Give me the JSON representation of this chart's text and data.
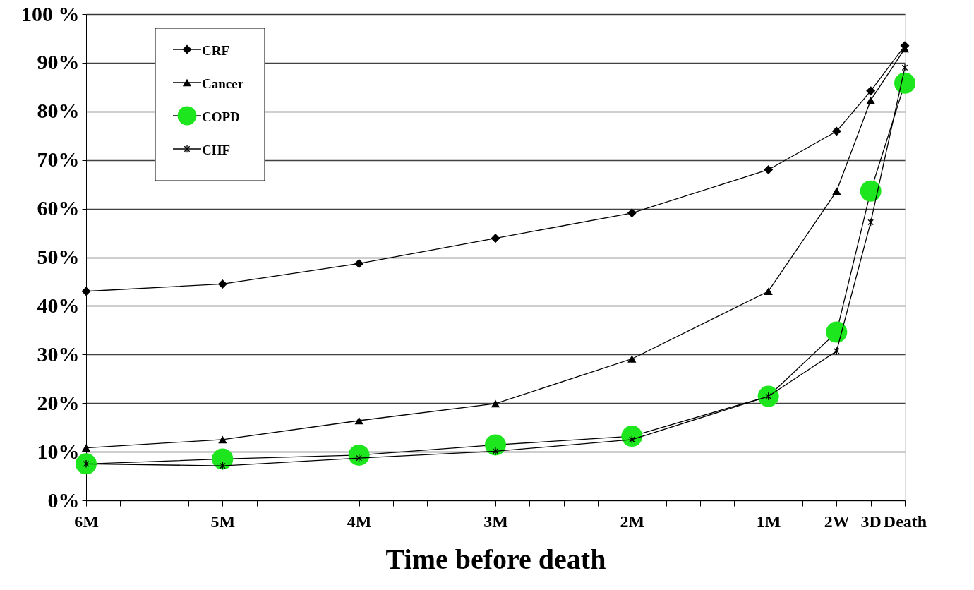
{
  "chart_data": {
    "type": "line",
    "xlabel": "Time before death",
    "categories": [
      "6M",
      null,
      null,
      null,
      "5M",
      null,
      null,
      null,
      "4M",
      null,
      null,
      null,
      "3M",
      null,
      null,
      null,
      "2M",
      null,
      null,
      null,
      "1M",
      null,
      "2W",
      "3D",
      "Death"
    ],
    "ylim": [
      0,
      100
    ],
    "yticks": [
      {
        "value": 0,
        "label": "0%"
      },
      {
        "value": 10,
        "label": "10%"
      },
      {
        "value": 20,
        "label": "20%"
      },
      {
        "value": 30,
        "label": "30%"
      },
      {
        "value": 40,
        "label": "40%"
      },
      {
        "value": 50,
        "label": "50%"
      },
      {
        "value": 60,
        "label": "60%"
      },
      {
        "value": 70,
        "label": "70%"
      },
      {
        "value": 80,
        "label": "80%"
      },
      {
        "value": 90,
        "label": "90%"
      },
      {
        "value": 100,
        "label": "100 %"
      }
    ],
    "grid": "y",
    "legend": "top left",
    "line_style": "solid",
    "series": [
      {
        "name": "CRF",
        "color": "#000000",
        "marker": "diamond",
        "values": [
          43,
          null,
          null,
          null,
          44.5,
          null,
          null,
          null,
          48.7,
          null,
          null,
          null,
          53.9,
          null,
          null,
          null,
          59.1,
          null,
          null,
          null,
          68,
          null,
          75.9,
          84.2,
          93.5
        ]
      },
      {
        "name": "Cancer",
        "color": "#000000",
        "marker": "triangle",
        "values": [
          10.8,
          null,
          null,
          null,
          12.5,
          null,
          null,
          null,
          16.4,
          null,
          null,
          null,
          19.9,
          null,
          null,
          null,
          29.1,
          null,
          null,
          null,
          43,
          null,
          63.6,
          82.3,
          92.9
        ]
      },
      {
        "name": "COPD",
        "color": "#000000",
        "colors": [
          "#1ee61e",
          null,
          null,
          null,
          "#1ee61e",
          null,
          null,
          null,
          "#1ee61e",
          null,
          null,
          null,
          "#1ee61e",
          null,
          null,
          null,
          "#1ee61e",
          null,
          null,
          null,
          "#1ee61e",
          null,
          "#1ee61e",
          "#1ee61e",
          "#1ee61e"
        ],
        "marker": "circle",
        "values": [
          7.5,
          null,
          null,
          null,
          8.5,
          null,
          null,
          null,
          9.3,
          null,
          null,
          null,
          11.4,
          null,
          null,
          null,
          13.2,
          null,
          null,
          null,
          21.4,
          null,
          34.6,
          63.6,
          85.8
        ]
      },
      {
        "name": "CHF",
        "color": "#000000",
        "marker": "cross",
        "values": [
          7.5,
          null,
          null,
          null,
          7.1,
          null,
          null,
          null,
          8.7,
          null,
          null,
          null,
          10.1,
          null,
          null,
          null,
          12.5,
          null,
          null,
          null,
          21.4,
          null,
          30.7,
          57.2,
          89
        ]
      }
    ]
  }
}
